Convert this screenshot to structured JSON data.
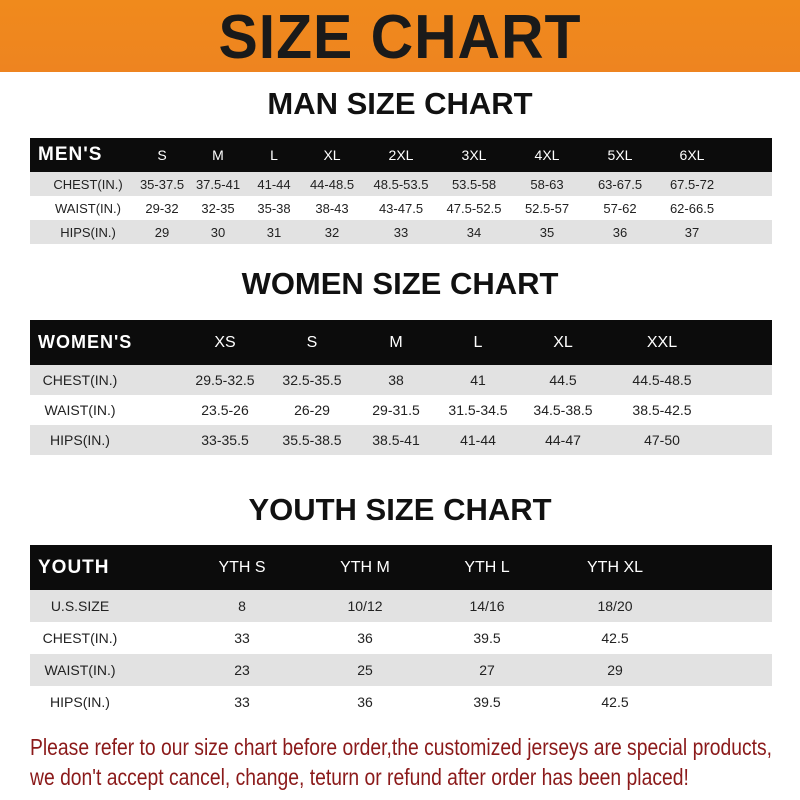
{
  "banner": {
    "title": "SIZE CHART",
    "color": "#f08a1c"
  },
  "men": {
    "title": "MAN SIZE CHART",
    "header_label": "MEN'S",
    "sizes": [
      "S",
      "M",
      "L",
      "XL",
      "2XL",
      "3XL",
      "4XL",
      "5XL",
      "6XL"
    ],
    "rows": [
      {
        "label": "CHEST(IN.)",
        "values": [
          "35-37.5",
          "37.5-41",
          "41-44",
          "44-48.5",
          "48.5-53.5",
          "53.5-58",
          "58-63",
          "63-67.5",
          "67.5-72"
        ]
      },
      {
        "label": "WAIST(IN.)",
        "values": [
          "29-32",
          "32-35",
          "35-38",
          "38-43",
          "43-47.5",
          "47.5-52.5",
          "52.5-57",
          "57-62",
          "62-66.5"
        ]
      },
      {
        "label": "HIPS(IN.)",
        "values": [
          "29",
          "30",
          "31",
          "32",
          "33",
          "34",
          "35",
          "36",
          "37"
        ]
      }
    ]
  },
  "women": {
    "title": "WOMEN SIZE CHART",
    "header_label": "WOMEN'S",
    "sizes": [
      "XS",
      "S",
      "M",
      "L",
      "XL",
      "XXL"
    ],
    "rows": [
      {
        "label": "CHEST(IN.)",
        "values": [
          "29.5-32.5",
          "32.5-35.5",
          "38",
          "41",
          "44.5",
          "44.5-48.5"
        ]
      },
      {
        "label": "WAIST(IN.)",
        "values": [
          "23.5-26",
          "26-29",
          "29-31.5",
          "31.5-34.5",
          "34.5-38.5",
          "38.5-42.5"
        ]
      },
      {
        "label": "HIPS(IN.)",
        "values": [
          "33-35.5",
          "35.5-38.5",
          "38.5-41",
          "41-44",
          "44-47",
          "47-50"
        ]
      }
    ]
  },
  "youth": {
    "title": "YOUTH SIZE CHART",
    "header_label": "YOUTH",
    "sizes": [
      "YTH S",
      "YTH M",
      "YTH L",
      "YTH XL"
    ],
    "rows": [
      {
        "label": "U.S.SIZE",
        "values": [
          "8",
          "10/12",
          "14/16",
          "18/20"
        ]
      },
      {
        "label": "CHEST(IN.)",
        "values": [
          "33",
          "36",
          "39.5",
          "42.5"
        ]
      },
      {
        "label": "WAIST(IN.)",
        "values": [
          "23",
          "25",
          "27",
          "29"
        ]
      },
      {
        "label": "HIPS(IN.)",
        "values": [
          "33",
          "36",
          "39.5",
          "42.5"
        ]
      }
    ]
  },
  "notice": {
    "line1": "Please refer to our size chart before order,the customized jerseys are special products,",
    "line2": "we don't accept cancel, change, teturn or refund after order has been placed!",
    "color": "#8b1a1a"
  }
}
